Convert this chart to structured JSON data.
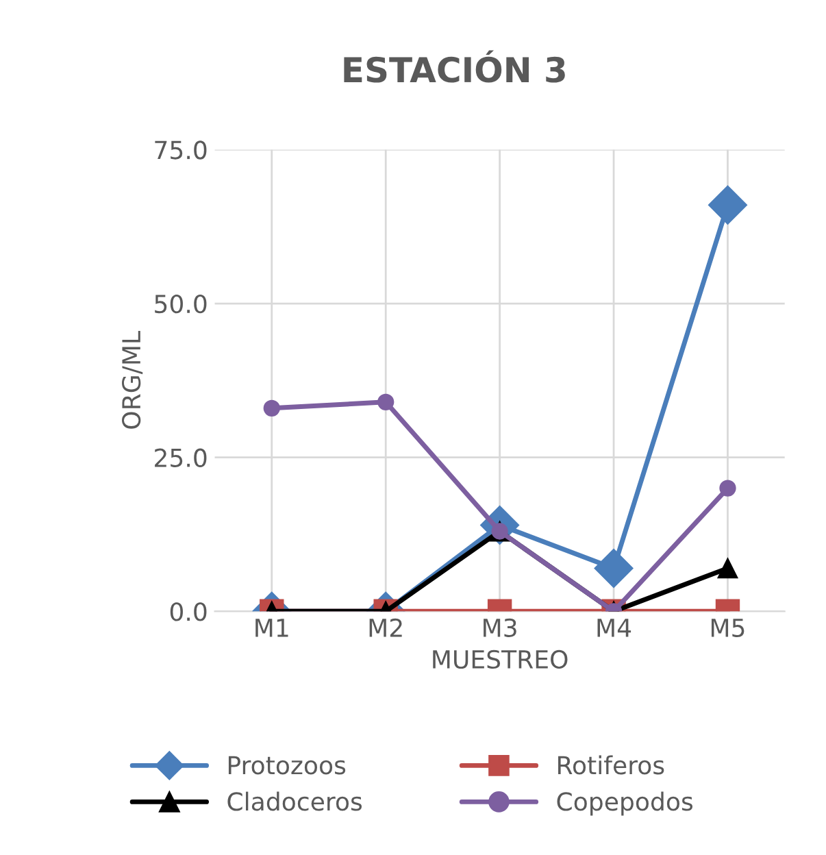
{
  "chart_data": {
    "type": "line",
    "title": "ESTACIÓN 3",
    "xlabel": "MUESTREO",
    "ylabel": "ORG/ML",
    "categories": [
      "M1",
      "M2",
      "M3",
      "M4",
      "M5"
    ],
    "series": [
      {
        "name": "Protozoos",
        "color": "#4a7ebb",
        "marker": "diamond",
        "values": [
          0,
          0,
          14,
          7,
          66
        ]
      },
      {
        "name": "Rotiferos",
        "color": "#be4b48",
        "marker": "square",
        "values": [
          0,
          0,
          0,
          0,
          0
        ]
      },
      {
        "name": "Cladoceros",
        "color": "#000000",
        "marker": "triangle",
        "values": [
          0,
          0,
          13,
          0,
          7
        ]
      },
      {
        "name": "Copepodos",
        "color": "#7d5fa0",
        "marker": "circle",
        "values": [
          33,
          34,
          13,
          0,
          20
        ]
      }
    ],
    "ylim": [
      0,
      75
    ],
    "yticks": [
      {
        "value": 0,
        "label": "0.0"
      },
      {
        "value": 25,
        "label": "25.0"
      },
      {
        "value": 50,
        "label": "50.0"
      },
      {
        "value": 75,
        "label": "75.0"
      }
    ],
    "grid": true,
    "legend": "bottom",
    "line_style": "solid"
  }
}
